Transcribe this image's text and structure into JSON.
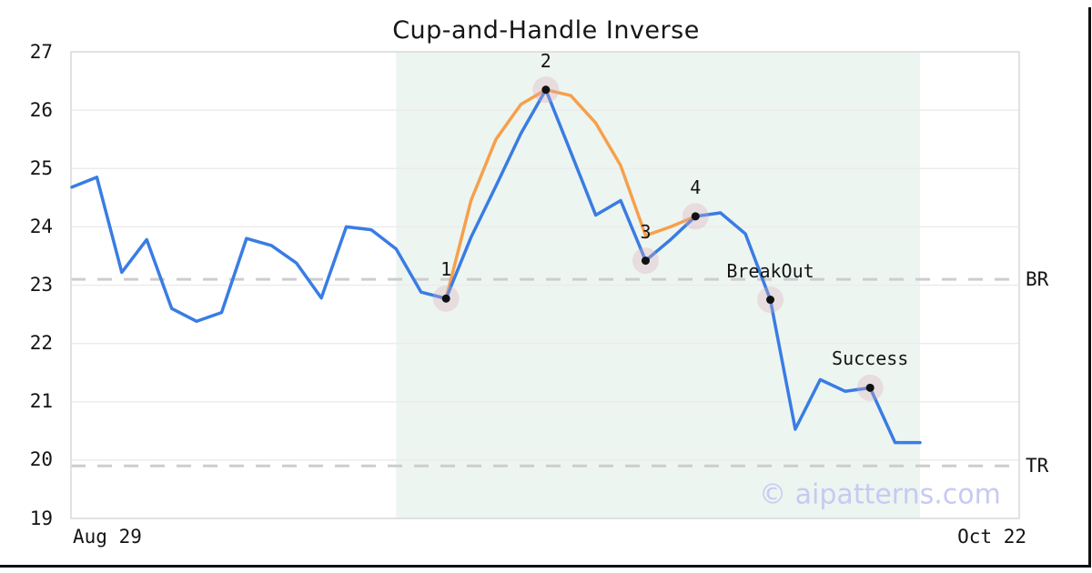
{
  "title": "Cup-and-Handle Inverse",
  "watermark": "© aipatterns.com",
  "colors": {
    "price_line": "#3a7ce4",
    "pattern_line": "#f6a04c",
    "marker_dot": "#111111",
    "marker_halo": "#d9a7b8",
    "highlight_region": "#edf5f1",
    "gridline": "#ececec",
    "level_dash": "#cdcdcd",
    "plot_border": "#d9d9d9",
    "watermark_text": "#c7caf1",
    "frame": "#101010"
  },
  "chart_data": {
    "type": "line",
    "title": "Cup-and-Handle Inverse",
    "x_start_label": "Aug 29",
    "x_end_label": "Oct 22",
    "xlabel": "",
    "ylabel": "",
    "ylim": [
      19,
      27
    ],
    "y_ticks": [
      27,
      26,
      25,
      24,
      23,
      22,
      21,
      20,
      19
    ],
    "grid": true,
    "legend": "none",
    "series": [
      {
        "name": "price",
        "color": "#3a7ce4",
        "start_index": 0,
        "values": [
          24.68,
          24.85,
          23.22,
          23.78,
          22.6,
          22.38,
          22.53,
          23.8,
          23.68,
          23.38,
          22.78,
          24.0,
          23.95,
          23.62,
          22.88,
          22.77,
          23.82,
          24.7,
          25.6,
          26.35,
          25.28,
          24.2,
          24.45,
          23.42,
          23.78,
          24.18,
          24.24,
          23.88,
          22.75,
          20.53,
          21.38,
          21.18,
          21.24,
          20.3,
          20.3
        ]
      },
      {
        "name": "pattern",
        "color": "#f6a04c",
        "start_index": 15,
        "values": [
          22.77,
          24.45,
          25.5,
          26.1,
          26.35,
          26.25,
          25.78,
          25.05,
          23.85,
          24.0,
          24.18
        ]
      }
    ],
    "markers": [
      {
        "label": "1",
        "index": 15,
        "value": 22.77
      },
      {
        "label": "2",
        "index": 19,
        "value": 26.35
      },
      {
        "label": "3",
        "index": 23,
        "value": 23.42
      },
      {
        "label": "4",
        "index": 25,
        "value": 24.18
      },
      {
        "label": "BreakOut",
        "index": 28,
        "value": 22.75
      },
      {
        "label": "Success",
        "index": 32,
        "value": 21.24
      }
    ],
    "levels": [
      {
        "label": "BR",
        "value": 23.1
      },
      {
        "label": "TR",
        "value": 19.9
      }
    ],
    "highlight_region": {
      "start_index": 13,
      "end_index": 34
    }
  }
}
